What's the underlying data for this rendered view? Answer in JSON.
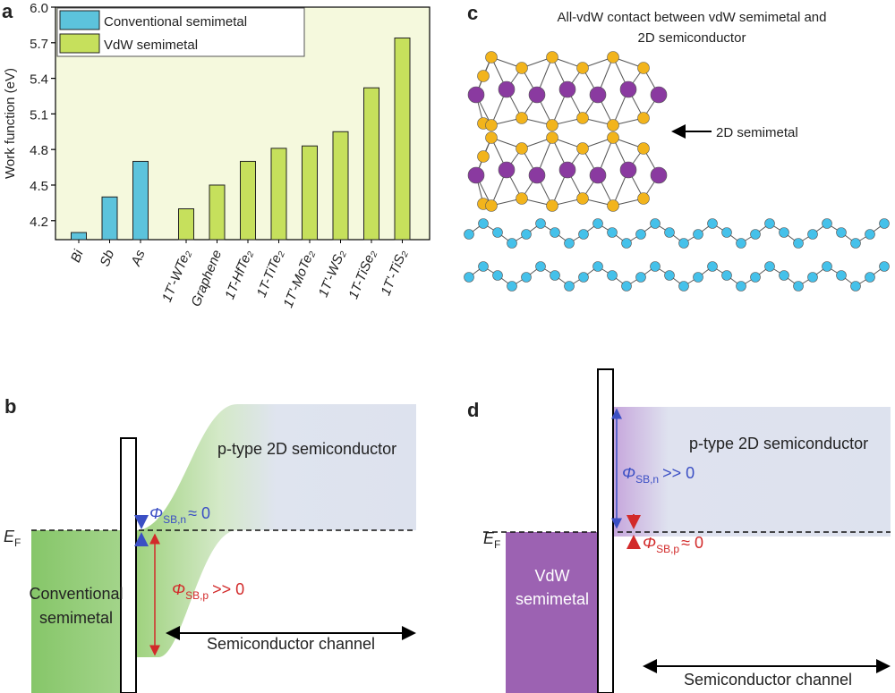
{
  "panel_labels": [
    "a",
    "b",
    "c",
    "d"
  ],
  "chart_data": {
    "type": "bar",
    "ylabel": "Work function (eV)",
    "categories": [
      "Bi",
      "Sb",
      "As",
      "1T'-WTe₂",
      "Graphene",
      "1T-HfTe₂",
      "1T-TiTe₂",
      "1T'-MoTe₂",
      "1T'-WS₂",
      "1T-TiSe₂",
      "1T'-TiS₂"
    ],
    "series": [
      {
        "name": "Conventional semimetal",
        "color": "#5cc3dc",
        "values": [
          4.1,
          4.4,
          4.7,
          null,
          null,
          null,
          null,
          null,
          null,
          null,
          null
        ]
      },
      {
        "name": "VdW semimetal",
        "color": "#c6e05c",
        "values": [
          null,
          null,
          null,
          4.3,
          4.5,
          4.7,
          4.81,
          4.83,
          4.95,
          5.32,
          5.74
        ]
      }
    ],
    "ylim": [
      4.04,
      6.0
    ],
    "yticks": [
      4.2,
      4.5,
      4.8,
      5.1,
      5.4,
      5.7,
      {
        "value": 6.0,
        "label": "6.0"
      }
    ],
    "legend": "upper left"
  },
  "panel_c": {
    "title_lines": [
      "All-vdW contact between vdW semimetal and",
      "2D semiconductor"
    ],
    "label": "2D semimetal"
  },
  "panel_b": {
    "fermi": {
      "symbol": "E",
      "subscript": "F"
    },
    "metal": [
      "Conventional",
      "semimetal"
    ],
    "semiconductor": "p-type 2D semiconductor",
    "barrier_n": {
      "symbol": "Φ",
      "subscript": "SB,n",
      "relation": "≈ 0"
    },
    "barrier_p": {
      "symbol": "Φ",
      "subscript": "SB,p",
      "relation": ">> 0"
    },
    "channel": "Semiconductor channel"
  },
  "panel_d": {
    "fermi": {
      "symbol": "E",
      "subscript": "F"
    },
    "metal": [
      "VdW",
      "semimetal"
    ],
    "semiconductor": "p-type 2D semiconductor",
    "barrier_n": {
      "symbol": "Φ",
      "subscript": "SB,n",
      "relation": ">> 0"
    },
    "barrier_p": {
      "symbol": "Φ",
      "subscript": "SB,p",
      "relation": "≈ 0"
    },
    "channel": "Semiconductor channel"
  }
}
